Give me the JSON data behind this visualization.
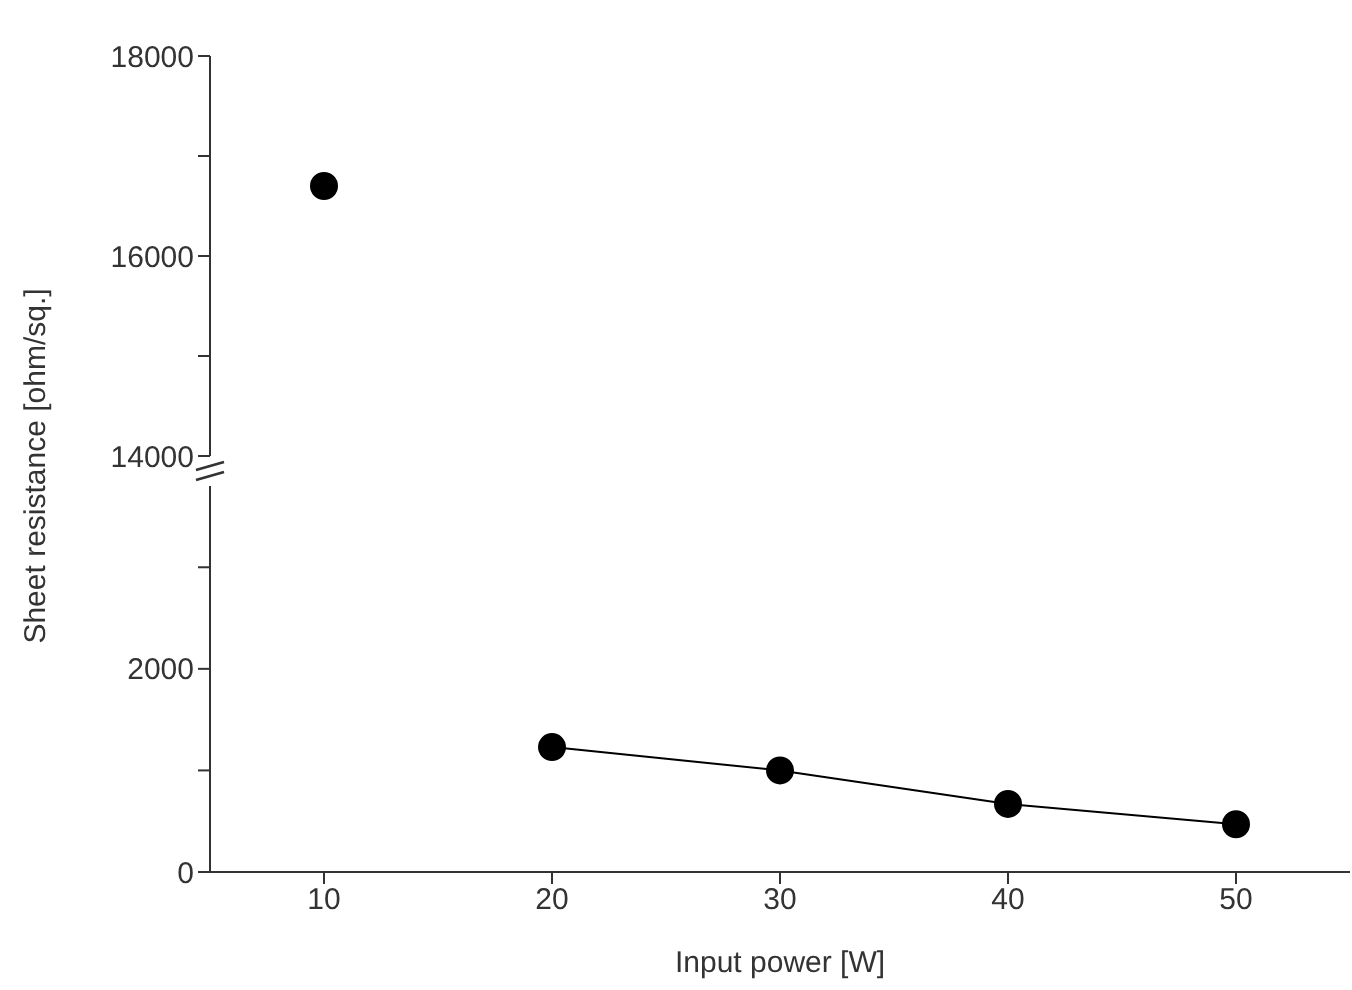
{
  "chart_data": [
    {
      "type": "line",
      "ylabel": "Sheet resistance [ohm/sq.]",
      "x": [
        10
      ],
      "xlim": [
        5,
        55
      ],
      "ylim": [
        14000,
        18000
      ],
      "yticks": [
        14000,
        {
          "value": 15000,
          "label": null
        },
        16000,
        {
          "value": 17000,
          "label": null
        },
        18000
      ],
      "tick_labels": "y",
      "marker": "circle",
      "line_style": "solid",
      "series": [
        {
          "color": "#000000",
          "values": [
            16700
          ]
        }
      ]
    },
    {
      "type": "line",
      "xlabel": "Input power [W]",
      "x": [
        20,
        30,
        40,
        50
      ],
      "xlim": [
        5,
        55
      ],
      "xticks": [
        10,
        20,
        30,
        40,
        50
      ],
      "ylim": [
        0,
        3800
      ],
      "yticks": [
        0,
        {
          "value": 1000,
          "label": null
        },
        2000,
        {
          "value": 3000,
          "label": null
        }
      ],
      "marker": "circle",
      "line_style": "solid",
      "series": [
        {
          "color": "#000000",
          "values": [
            1230,
            1000,
            670,
            470
          ]
        }
      ]
    }
  ]
}
